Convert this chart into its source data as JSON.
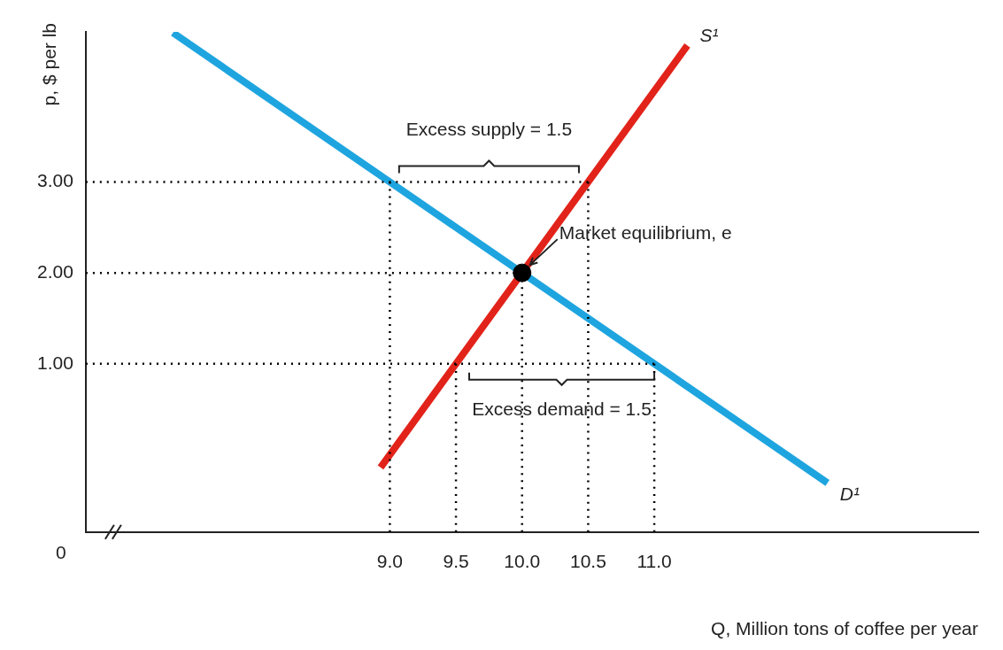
{
  "chart_data": {
    "type": "line",
    "xlabel": "Q, Million tons of coffee per year",
    "ylabel": "p, $ per lb",
    "xlim": [
      6.7,
      13.45
    ],
    "ylim": [
      -0.85,
      4.65
    ],
    "xticks": [
      {
        "value": 9,
        "label": "9.0"
      },
      {
        "value": 9.5,
        "label": "9.5"
      },
      {
        "value": 10,
        "label": "10.0"
      },
      {
        "value": 10.5,
        "label": "10.5"
      },
      {
        "value": 11,
        "label": "11.0"
      }
    ],
    "yticks": [
      {
        "value": 1,
        "label": "1.00"
      },
      {
        "value": 2,
        "label": "2.00"
      },
      {
        "value": 3,
        "label": "3.00"
      }
    ],
    "grid": false,
    "legend": false,
    "marker": "none",
    "series": [
      {
        "name": "D¹",
        "color": "#1ea5df",
        "x": [
          7.36,
          12.31
        ],
        "values": [
          4.64,
          -0.31
        ]
      },
      {
        "name": "S¹",
        "color": "#e2231a",
        "x": [
          8.93,
          11.25
        ],
        "values": [
          -0.14,
          4.5
        ]
      },
      {
        "type": "scatter",
        "color": "#000000",
        "marker": "circle",
        "x": [
          10
        ],
        "values": [
          2
        ]
      },
      {
        "color": "#000000",
        "line_style": "dotted",
        "x": [
          6.7,
          10.5
        ],
        "values": [
          3,
          3
        ]
      },
      {
        "color": "#000000",
        "line_style": "dotted",
        "x": [
          6.7,
          10
        ],
        "values": [
          2,
          2
        ]
      },
      {
        "color": "#000000",
        "line_style": "dotted",
        "x": [
          6.7,
          11
        ],
        "values": [
          1,
          1
        ]
      },
      {
        "color": "#000000",
        "line_style": "dotted",
        "x": [
          9,
          9
        ],
        "values": [
          -0.85,
          3
        ]
      },
      {
        "color": "#000000",
        "line_style": "dotted",
        "x": [
          9.5,
          9.5
        ],
        "values": [
          -0.85,
          1
        ]
      },
      {
        "color": "#000000",
        "line_style": "dotted",
        "x": [
          10,
          10
        ],
        "values": [
          -0.85,
          2
        ]
      },
      {
        "color": "#000000",
        "line_style": "dotted",
        "x": [
          10.5,
          10.5
        ],
        "values": [
          -0.85,
          3
        ]
      },
      {
        "color": "#000000",
        "line_style": "dotted",
        "x": [
          11,
          11
        ],
        "values": [
          -0.85,
          1
        ]
      }
    ],
    "annotations": [
      {
        "text": "Excess supply = 1.5",
        "x": 9.75,
        "y": 3
      },
      {
        "text": "Excess demand = 1.5",
        "x": 10.3,
        "y": 1
      },
      {
        "text": "Market equilibrium, e",
        "x": 10,
        "y": 2
      },
      "0"
    ]
  }
}
